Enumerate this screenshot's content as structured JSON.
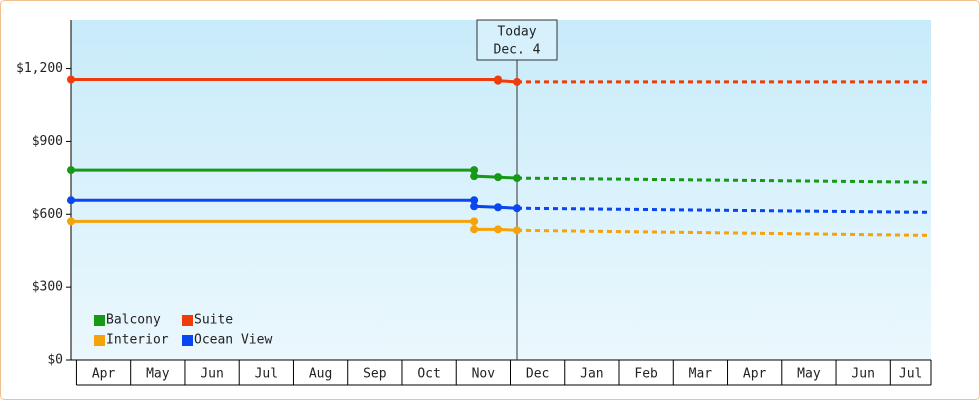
{
  "chart_data": {
    "type": "line",
    "categories": [
      "Apr",
      "May",
      "Jun",
      "Jul",
      "Aug",
      "Sep",
      "Oct",
      "Nov",
      "Dec",
      "Jan",
      "Feb",
      "Mar",
      "Apr",
      "May",
      "Jun",
      "Jul"
    ],
    "xlim": [
      -0.1,
      15.75
    ],
    "ylim": [
      0,
      1400
    ],
    "yticks": [
      {
        "value": 0,
        "label": "$0"
      },
      {
        "value": 300,
        "label": "$300"
      },
      {
        "value": 600,
        "label": "$600"
      },
      {
        "value": 900,
        "label": "$900"
      },
      {
        "value": 1200,
        "label": "$1,200"
      }
    ],
    "today": 8.12,
    "today_label": [
      "Today",
      "Dec. 4"
    ],
    "legend": "lower left",
    "series": [
      {
        "name": "Balcony",
        "color": "#169a16",
        "x": [
          -0.1,
          7.33,
          7.33,
          7.77,
          8.12,
          15.75
        ],
        "values": [
          782,
          782,
          757,
          753,
          749,
          732
        ]
      },
      {
        "name": "Suite",
        "color": "#f03c0a",
        "x": [
          -0.1,
          7.77,
          7.77,
          8.12,
          15.75
        ],
        "values": [
          1155,
          1155,
          1150,
          1145,
          1145
        ]
      },
      {
        "name": "Interior",
        "color": "#f5a30a",
        "x": [
          -0.1,
          7.33,
          7.33,
          7.77,
          8.12,
          15.75
        ],
        "values": [
          571,
          571,
          538,
          538,
          534,
          513
        ]
      },
      {
        "name": "Ocean View",
        "color": "#0a46f0",
        "x": [
          -0.1,
          7.33,
          7.33,
          7.77,
          8.12,
          15.75
        ],
        "values": [
          658,
          658,
          633,
          629,
          625,
          608
        ]
      }
    ]
  }
}
